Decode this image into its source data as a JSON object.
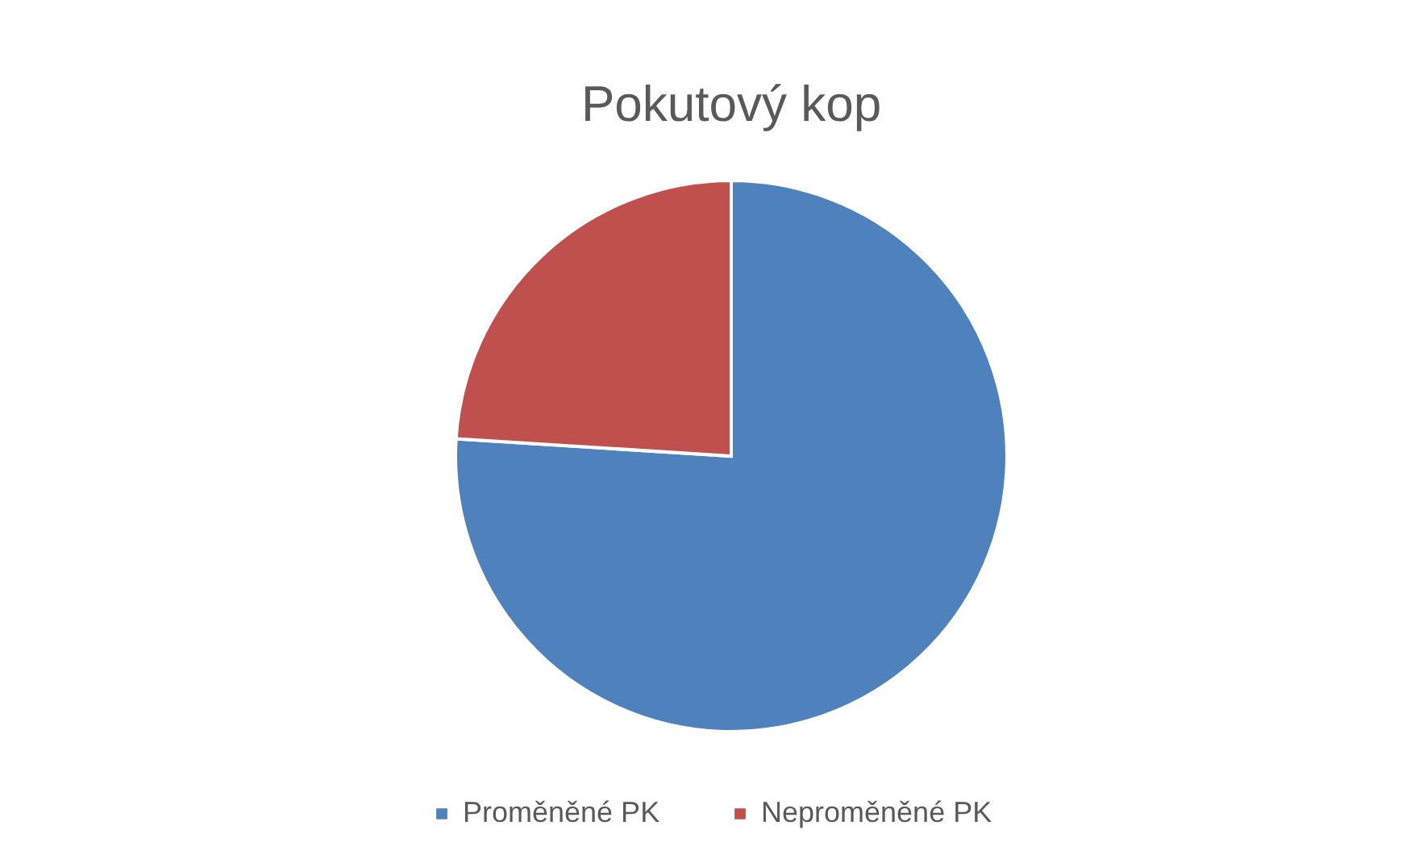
{
  "chart_data": {
    "type": "pie",
    "title": "Pokutový kop",
    "categories": [
      "Proměněné PK",
      "Neproměněné PK"
    ],
    "values": [
      76,
      24
    ],
    "colors": [
      "#4f81bd",
      "#c0504d"
    ],
    "legend": "bottom"
  }
}
